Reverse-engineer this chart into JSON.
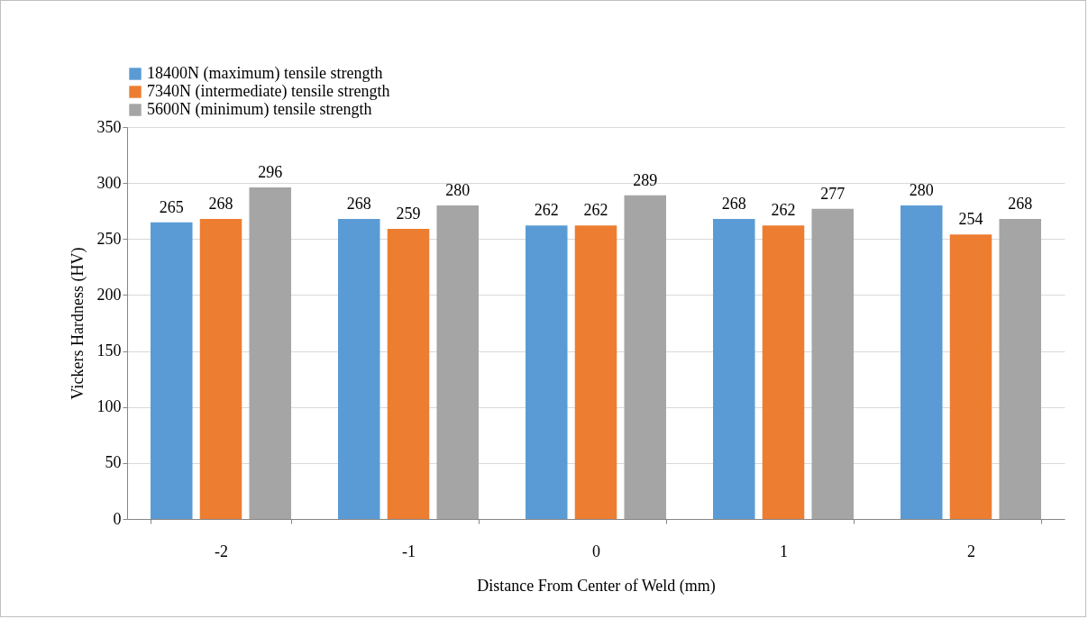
{
  "chart_data": {
    "type": "bar",
    "xlabel": "Distance From Center of Weld (mm)",
    "ylabel": "Vickers Hardness (HV)",
    "categories": [
      "-2",
      "-1",
      "0",
      "1",
      "2"
    ],
    "series": [
      {
        "name": "18400N (maximum) tensile strength",
        "color": "#5b9bd5",
        "values": [
          265,
          268,
          262,
          268,
          280
        ]
      },
      {
        "name": "7340N (intermediate) tensile strength",
        "color": "#ed7d31",
        "values": [
          268,
          259,
          262,
          262,
          254
        ]
      },
      {
        "name": "5600N (minimum) tensile strength",
        "color": "#a5a5a5",
        "values": [
          296,
          280,
          289,
          277,
          268
        ]
      }
    ],
    "ylim": [
      0,
      350
    ],
    "yticks": [
      0,
      50,
      100,
      150,
      200,
      250,
      300,
      350
    ],
    "grid": "y",
    "legend": "top",
    "data_labels": true
  }
}
